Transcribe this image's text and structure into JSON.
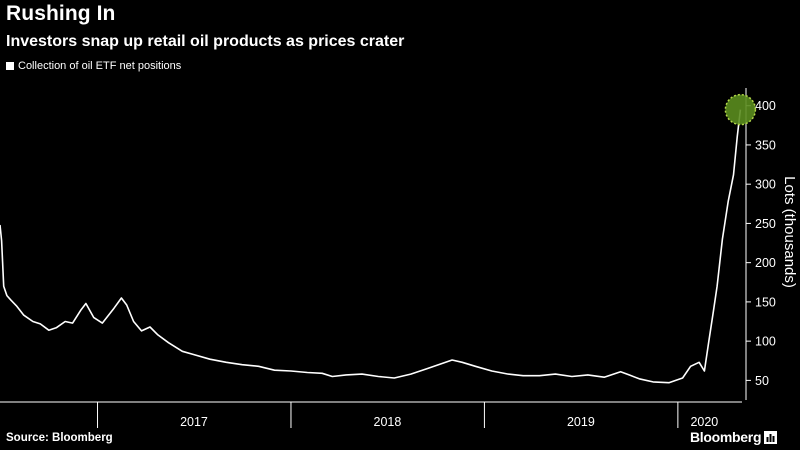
{
  "header": {
    "title": "Rushing In",
    "subtitle": "Investors snap up retail oil products as prices crater"
  },
  "footer": {
    "source": "Source: Bloomberg",
    "brand": "Bloomberg"
  },
  "colors": {
    "background": "#000000",
    "line": "#ffffff",
    "highlight": "#5a8c1e",
    "highlight_stroke": "#b4d84a"
  },
  "chart_data": {
    "type": "line",
    "title": "Rushing In",
    "subtitle": "Investors snap up retail oil products as prices crater",
    "xlabel": "",
    "ylabel": "Lots (thousands)",
    "ylim": [
      25,
      420
    ],
    "yticks": [
      50,
      100,
      150,
      200,
      250,
      300,
      350,
      400
    ],
    "xlim": [
      "2016-07-01",
      "2020-05-01"
    ],
    "x_tick_labels": [
      "2017",
      "2018",
      "2019",
      "2020"
    ],
    "grid": false,
    "legend_position": "top-left",
    "highlight": {
      "x": "2020-04-28",
      "y": 395
    },
    "series": [
      {
        "name": "Collection of oil ETF net positions",
        "points": [
          [
            "2016-07-01",
            248
          ],
          [
            "2016-07-04",
            228
          ],
          [
            "2016-07-08",
            170
          ],
          [
            "2016-07-14",
            158
          ],
          [
            "2016-07-22",
            152
          ],
          [
            "2016-08-01",
            145
          ],
          [
            "2016-08-15",
            133
          ],
          [
            "2016-09-01",
            125
          ],
          [
            "2016-09-15",
            122
          ],
          [
            "2016-10-01",
            114
          ],
          [
            "2016-10-15",
            117
          ],
          [
            "2016-11-01",
            125
          ],
          [
            "2016-11-15",
            123
          ],
          [
            "2016-12-01",
            140
          ],
          [
            "2016-12-10",
            148
          ],
          [
            "2016-12-25",
            130
          ],
          [
            "2017-01-10",
            123
          ],
          [
            "2017-02-01",
            142
          ],
          [
            "2017-02-15",
            155
          ],
          [
            "2017-02-25",
            146
          ],
          [
            "2017-03-10",
            125
          ],
          [
            "2017-03-25",
            113
          ],
          [
            "2017-04-10",
            118
          ],
          [
            "2017-04-25",
            108
          ],
          [
            "2017-05-15",
            98
          ],
          [
            "2017-06-10",
            87
          ],
          [
            "2017-07-01",
            83
          ],
          [
            "2017-08-01",
            77
          ],
          [
            "2017-09-01",
            73
          ],
          [
            "2017-10-01",
            70
          ],
          [
            "2017-11-01",
            68
          ],
          [
            "2017-12-01",
            63
          ],
          [
            "2018-01-01",
            62
          ],
          [
            "2018-02-01",
            60
          ],
          [
            "2018-03-01",
            59
          ],
          [
            "2018-03-20",
            55
          ],
          [
            "2018-04-15",
            57
          ],
          [
            "2018-05-15",
            58
          ],
          [
            "2018-06-15",
            55
          ],
          [
            "2018-07-15",
            53
          ],
          [
            "2018-08-15",
            58
          ],
          [
            "2018-09-15",
            65
          ],
          [
            "2018-10-15",
            72
          ],
          [
            "2018-11-01",
            76
          ],
          [
            "2018-11-20",
            73
          ],
          [
            "2018-12-15",
            68
          ],
          [
            "2019-01-15",
            62
          ],
          [
            "2019-02-15",
            58
          ],
          [
            "2019-03-15",
            56
          ],
          [
            "2019-04-15",
            56
          ],
          [
            "2019-05-15",
            58
          ],
          [
            "2019-06-15",
            55
          ],
          [
            "2019-07-15",
            57
          ],
          [
            "2019-08-15",
            54
          ],
          [
            "2019-09-15",
            61
          ],
          [
            "2019-10-01",
            57
          ],
          [
            "2019-10-20",
            52
          ],
          [
            "2019-11-15",
            48
          ],
          [
            "2019-12-15",
            47
          ],
          [
            "2020-01-10",
            53
          ],
          [
            "2020-01-25",
            68
          ],
          [
            "2020-02-10",
            73
          ],
          [
            "2020-02-20",
            62
          ],
          [
            "2020-02-28",
            98
          ],
          [
            "2020-03-08",
            138
          ],
          [
            "2020-03-15",
            170
          ],
          [
            "2020-03-25",
            230
          ],
          [
            "2020-04-05",
            278
          ],
          [
            "2020-04-15",
            312
          ],
          [
            "2020-04-22",
            360
          ],
          [
            "2020-04-28",
            395
          ]
        ]
      }
    ]
  }
}
